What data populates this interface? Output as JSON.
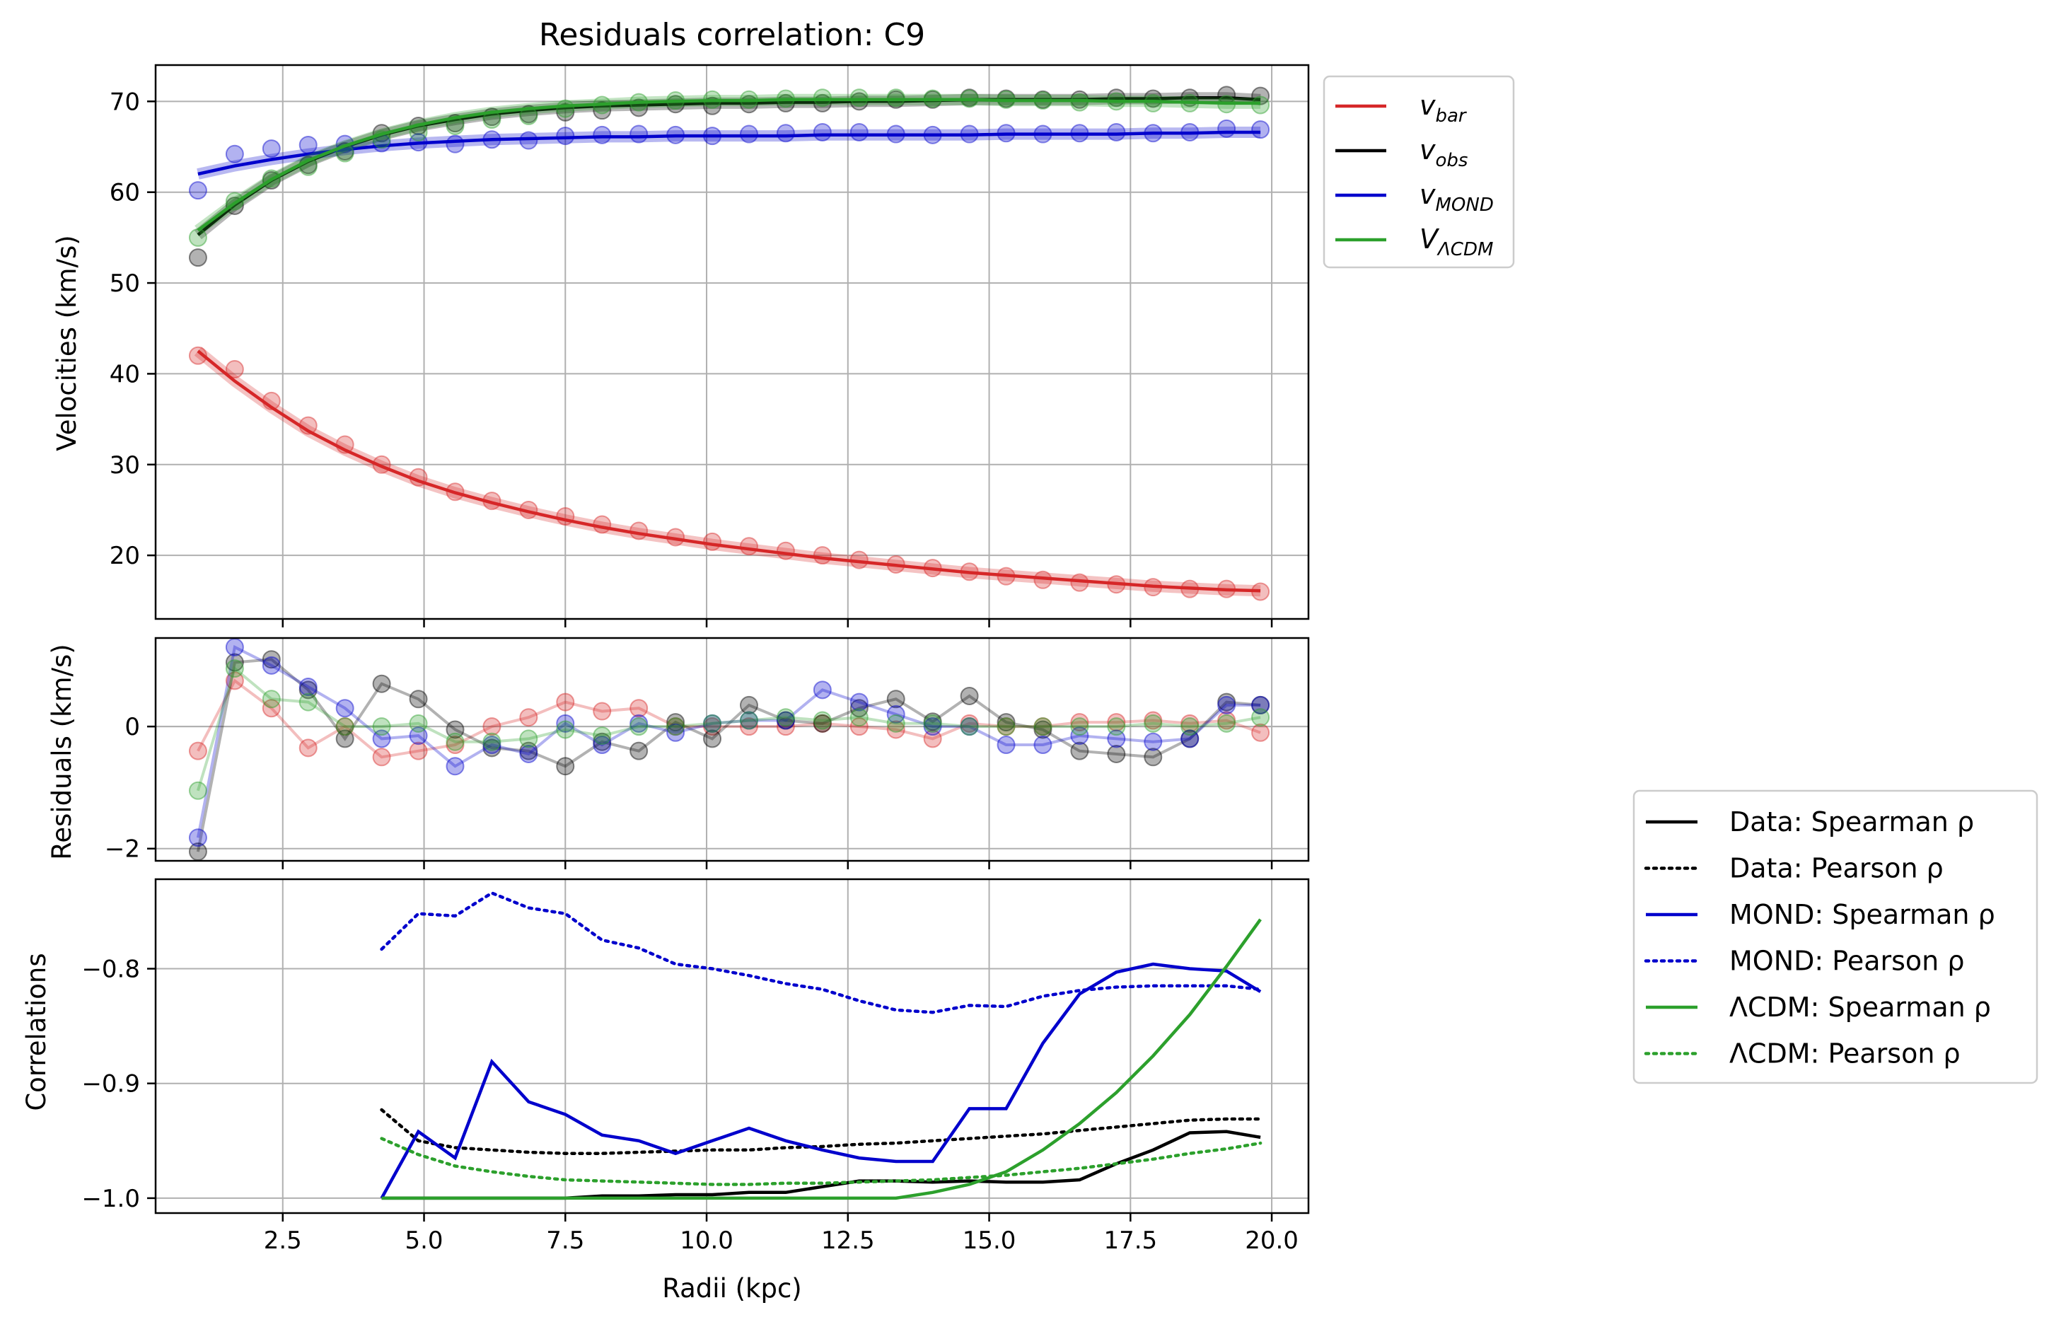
{
  "chart_data": [
    {
      "type": "line",
      "title": "Residuals correlation: C9",
      "xlabel": "",
      "ylabel": "Velocities (km/s)",
      "xlim": [
        0.25,
        20.65
      ],
      "ylim": [
        13,
        74
      ],
      "yticks": [
        20,
        30,
        40,
        50,
        60,
        70
      ],
      "grid": true,
      "legend_placement": "outside upper right",
      "legend": [
        {
          "base": "v",
          "sub": "bar",
          "color": "#d62728"
        },
        {
          "base": "v",
          "sub": "obs",
          "color": "#000000"
        },
        {
          "base": "v",
          "sub": "MOND",
          "color": "#0000cc"
        },
        {
          "base": "V",
          "sub": "ΛCDM",
          "color": "#2ca02c"
        }
      ],
      "x": [
        1.0,
        1.65,
        2.3,
        2.95,
        3.6,
        4.25,
        4.9,
        5.55,
        6.2,
        6.85,
        7.5,
        8.15,
        8.8,
        9.45,
        10.1,
        10.75,
        11.4,
        12.05,
        12.7,
        13.35,
        14.0,
        14.65,
        15.3,
        15.95,
        16.6,
        17.25,
        17.9,
        18.55,
        19.2,
        19.8
      ],
      "series": [
        {
          "key": "vbar",
          "color": "#d62728",
          "points": [
            42,
            40.5,
            37,
            34.3,
            32.2,
            30,
            28.6,
            27,
            26,
            25,
            24.3,
            23.4,
            22.7,
            22,
            21.5,
            21,
            20.5,
            20,
            19.5,
            19,
            18.6,
            18.2,
            17.7,
            17.3,
            17,
            16.8,
            16.5,
            16.3,
            16.3,
            16
          ],
          "fit": [
            42.5,
            39.2,
            36.3,
            33.7,
            31.6,
            29.8,
            28.2,
            26.9,
            25.8,
            24.8,
            23.9,
            23.1,
            22.4,
            21.8,
            21.2,
            20.7,
            20.2,
            19.7,
            19.3,
            18.9,
            18.5,
            18.1,
            17.8,
            17.5,
            17.2,
            16.9,
            16.6,
            16.4,
            16.2,
            16.1
          ]
        },
        {
          "key": "vobs",
          "color": "#000000",
          "points": [
            52.8,
            58.5,
            61.3,
            63,
            64.5,
            66.5,
            67.3,
            67.6,
            68.3,
            68.6,
            68.8,
            69,
            69.3,
            69.7,
            69.5,
            69.7,
            69.8,
            69.8,
            70,
            70.2,
            70.2,
            70.4,
            70.3,
            70.2,
            70.2,
            70.4,
            70.3,
            70.4,
            70.7,
            70.6
          ],
          "fit": [
            55.3,
            58.6,
            61.3,
            63.4,
            65,
            66.3,
            67.3,
            68,
            68.6,
            69,
            69.3,
            69.5,
            69.6,
            69.7,
            69.8,
            69.8,
            69.9,
            69.9,
            70,
            70,
            70.1,
            70.2,
            70.2,
            70.2,
            70.2,
            70.3,
            70.3,
            70.4,
            70.4,
            70.2
          ]
        },
        {
          "key": "vmond",
          "color": "#0000cc",
          "points": [
            60.2,
            64.2,
            64.8,
            65.2,
            65.3,
            65.4,
            65.5,
            65.3,
            65.8,
            65.7,
            66.2,
            66.3,
            66.4,
            66.3,
            66.2,
            66.4,
            66.5,
            66.6,
            66.6,
            66.4,
            66.3,
            66.4,
            66.5,
            66.4,
            66.5,
            66.6,
            66.5,
            66.6,
            67,
            66.9
          ],
          "fit": [
            62,
            62.9,
            63.6,
            64.2,
            64.7,
            65.1,
            65.4,
            65.6,
            65.8,
            65.9,
            66,
            66.1,
            66.1,
            66.2,
            66.2,
            66.2,
            66.2,
            66.3,
            66.3,
            66.3,
            66.3,
            66.3,
            66.4,
            66.4,
            66.4,
            66.4,
            66.5,
            66.5,
            66.6,
            66.6
          ]
        },
        {
          "key": "vlcdm",
          "color": "#2ca02c",
          "points": [
            55,
            59,
            61.5,
            62.8,
            64.3,
            65.8,
            66.6,
            67.3,
            68,
            68.4,
            69.2,
            69.6,
            69.9,
            70.1,
            70.2,
            70.2,
            70.3,
            70.4,
            70.4,
            70.4,
            70.3,
            70.3,
            70.2,
            70.1,
            69.9,
            70,
            69.8,
            69.8,
            69.7,
            69.6
          ],
          "fit": [
            55.8,
            58.8,
            61.4,
            63.5,
            65.1,
            66.4,
            67.4,
            68.2,
            68.8,
            69.2,
            69.5,
            69.7,
            69.9,
            70,
            70.1,
            70.1,
            70.2,
            70.2,
            70.2,
            70.2,
            70.2,
            70.2,
            70.1,
            70.1,
            70.1,
            70,
            70,
            69.9,
            69.8,
            69.8
          ]
        }
      ]
    },
    {
      "type": "line",
      "ylabel": "Residuals (km/s)",
      "xlim": [
        0.25,
        20.65
      ],
      "ylim": [
        -2.2,
        1.45
      ],
      "yticks": [
        -2,
        0
      ],
      "grid": true,
      "x": [
        1.0,
        1.65,
        2.3,
        2.95,
        3.6,
        4.25,
        4.9,
        5.55,
        6.2,
        6.85,
        7.5,
        8.15,
        8.8,
        9.45,
        10.1,
        10.75,
        11.4,
        12.05,
        12.7,
        13.35,
        14.0,
        14.65,
        15.3,
        15.95,
        16.6,
        17.25,
        17.9,
        18.55,
        19.2,
        19.8
      ],
      "series": [
        {
          "key": "vbar",
          "color": "#d62728",
          "values": [
            -0.4,
            0.75,
            0.3,
            -0.35,
            0,
            -0.5,
            -0.4,
            -0.3,
            0,
            0.15,
            0.4,
            0.25,
            0.3,
            0,
            0,
            0,
            0,
            0.05,
            0,
            -0.05,
            -0.2,
            0.05,
            0,
            0,
            0.07,
            0.07,
            0.1,
            0.05,
            0.1,
            -0.1
          ]
        },
        {
          "key": "vobs",
          "color": "#000000",
          "values": [
            -2.05,
            1.05,
            1.1,
            0.6,
            -0.2,
            0.7,
            0.45,
            -0.05,
            -0.35,
            -0.4,
            -0.65,
            -0.25,
            -0.4,
            0.07,
            -0.2,
            0.35,
            0.1,
            0.05,
            0.3,
            0.45,
            0.08,
            0.5,
            0.07,
            -0.05,
            -0.4,
            -0.45,
            -0.5,
            -0.2,
            0.4,
            0.35
          ]
        },
        {
          "key": "vmond",
          "color": "#0000cc",
          "values": [
            -1.82,
            1.3,
            1,
            0.65,
            0.3,
            -0.2,
            -0.15,
            -0.65,
            -0.3,
            -0.45,
            0.05,
            -0.3,
            0.05,
            -0.1,
            0.05,
            0.1,
            0.1,
            0.6,
            0.4,
            0.2,
            0,
            0,
            -0.3,
            -0.3,
            -0.15,
            -0.2,
            -0.25,
            -0.2,
            0.35,
            0.35
          ]
        },
        {
          "key": "vlcdm",
          "color": "#2ca02c",
          "values": [
            -1.05,
            0.95,
            0.45,
            0.4,
            0,
            0,
            0.05,
            -0.25,
            -0.25,
            -0.2,
            -0.05,
            -0.15,
            0,
            0,
            0.05,
            0.1,
            0.15,
            0.1,
            0.15,
            0.05,
            0.05,
            0,
            0,
            0,
            0,
            0,
            0.05,
            0,
            0.05,
            0.15
          ]
        }
      ]
    },
    {
      "type": "line",
      "xlabel": "Radii (kpc)",
      "ylabel": "Correlations",
      "xlim": [
        0.25,
        20.65
      ],
      "ylim": [
        -1.013,
        -0.722
      ],
      "yticks": [
        -1.0,
        -0.9,
        -0.8
      ],
      "ytick_labels": [
        "−1.0",
        "−0.9",
        "−0.8"
      ],
      "xticks": [
        2.5,
        5.0,
        7.5,
        10.0,
        12.5,
        15.0,
        17.5,
        20.0
      ],
      "xtick_labels": [
        "2.5",
        "5.0",
        "7.5",
        "10.0",
        "12.5",
        "15.0",
        "17.5",
        "20.0"
      ],
      "grid": true,
      "legend_placement": "outside lower right",
      "x": [
        4.25,
        4.9,
        5.55,
        6.2,
        6.85,
        7.5,
        8.15,
        8.8,
        9.45,
        10.1,
        10.75,
        11.4,
        12.05,
        12.7,
        13.35,
        14.0,
        14.65,
        15.3,
        15.95,
        16.6,
        17.25,
        17.9,
        18.55,
        19.2,
        19.8
      ],
      "series": [
        {
          "name": "Data: Spearman ρ",
          "color": "#000000",
          "dash": "solid",
          "values": [
            -1,
            -1,
            -1,
            -1,
            -1,
            -1,
            -0.998,
            -0.998,
            -0.997,
            -0.997,
            -0.995,
            -0.995,
            -0.99,
            -0.985,
            -0.985,
            -0.986,
            -0.985,
            -0.986,
            -0.986,
            -0.984,
            -0.97,
            -0.958,
            -0.943,
            -0.942,
            -0.947
          ]
        },
        {
          "name": "Data: Pearson ρ",
          "color": "#000000",
          "dash": "dotted",
          "values": [
            -0.923,
            -0.95,
            -0.956,
            -0.958,
            -0.96,
            -0.961,
            -0.961,
            -0.96,
            -0.959,
            -0.958,
            -0.958,
            -0.956,
            -0.955,
            -0.953,
            -0.952,
            -0.95,
            -0.948,
            -0.946,
            -0.944,
            -0.941,
            -0.938,
            -0.935,
            -0.932,
            -0.931,
            -0.931
          ]
        },
        {
          "name": "MOND: Spearman ρ",
          "color": "#0000cc",
          "dash": "solid",
          "values": [
            -1,
            -0.942,
            -0.965,
            -0.881,
            -0.916,
            -0.927,
            -0.945,
            -0.95,
            -0.961,
            -0.95,
            -0.939,
            -0.95,
            -0.958,
            -0.965,
            -0.968,
            -0.968,
            -0.922,
            -0.922,
            -0.865,
            -0.822,
            -0.803,
            -0.796,
            -0.8,
            -0.802,
            -0.82
          ]
        },
        {
          "name": "MOND: Pearson ρ",
          "color": "#0000cc",
          "dash": "dotted",
          "values": [
            -0.783,
            -0.752,
            -0.754,
            -0.734,
            -0.747,
            -0.752,
            -0.775,
            -0.782,
            -0.796,
            -0.8,
            -0.806,
            -0.813,
            -0.818,
            -0.828,
            -0.836,
            -0.838,
            -0.832,
            -0.833,
            -0.824,
            -0.819,
            -0.816,
            -0.815,
            -0.815,
            -0.815,
            -0.818
          ]
        },
        {
          "name": "ΛCDM: Spearman ρ",
          "color": "#2ca02c",
          "dash": "solid",
          "values": [
            -1,
            -1,
            -1,
            -1,
            -1,
            -1,
            -1,
            -1,
            -1,
            -1,
            -1,
            -1,
            -1,
            -1,
            -1,
            -0.995,
            -0.988,
            -0.977,
            -0.958,
            -0.935,
            -0.908,
            -0.876,
            -0.84,
            -0.798,
            -0.757
          ]
        },
        {
          "name": "ΛCDM: Pearson ρ",
          "color": "#2ca02c",
          "dash": "dotted",
          "values": [
            -0.948,
            -0.962,
            -0.972,
            -0.977,
            -0.981,
            -0.984,
            -0.985,
            -0.986,
            -0.987,
            -0.988,
            -0.988,
            -0.987,
            -0.987,
            -0.986,
            -0.985,
            -0.984,
            -0.982,
            -0.98,
            -0.977,
            -0.974,
            -0.97,
            -0.966,
            -0.961,
            -0.957,
            -0.952
          ]
        }
      ]
    }
  ]
}
